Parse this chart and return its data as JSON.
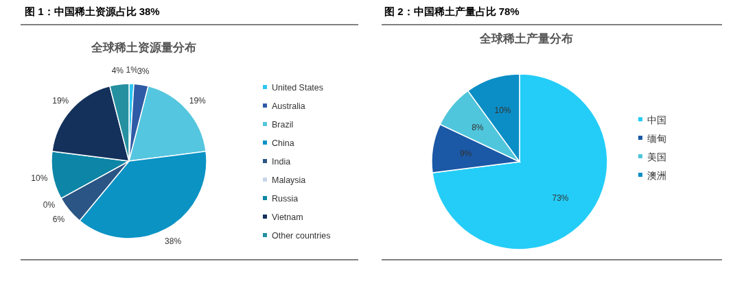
{
  "chart_data": [
    {
      "type": "pie",
      "title": "图 1：中国稀土资源占比 38%",
      "subtitle": "全球稀土资源量分布",
      "categories": [
        "United States",
        "Australia",
        "Brazil",
        "China",
        "India",
        "Malaysia",
        "Russia",
        "Vietnam",
        "Other countries"
      ],
      "values": [
        1,
        3,
        19,
        38,
        6,
        0,
        10,
        19,
        4
      ],
      "value_labels": [
        "1%",
        "3%",
        "19%",
        "38%",
        "6%",
        "0%",
        "10%",
        "19%",
        "4%"
      ],
      "colors": [
        "#2ac6f2",
        "#2f5ba6",
        "#55c6df",
        "#0b93c4",
        "#2b5584",
        "#c7d6ea",
        "#0c85a6",
        "#14315c",
        "#2590a0"
      ],
      "legend": "right"
    },
    {
      "type": "pie",
      "title": "图 2：中国稀土产量占比 78%",
      "subtitle": "全球稀土产量分布",
      "categories": [
        "中国",
        "缅甸",
        "美国",
        "澳洲"
      ],
      "values": [
        73,
        9,
        8,
        10
      ],
      "value_labels": [
        "73%",
        "9%",
        "8%",
        "10%"
      ],
      "colors": [
        "#24cdf7",
        "#1b58a6",
        "#50c6dc",
        "#0b8ec6"
      ],
      "legend": "right"
    }
  ]
}
